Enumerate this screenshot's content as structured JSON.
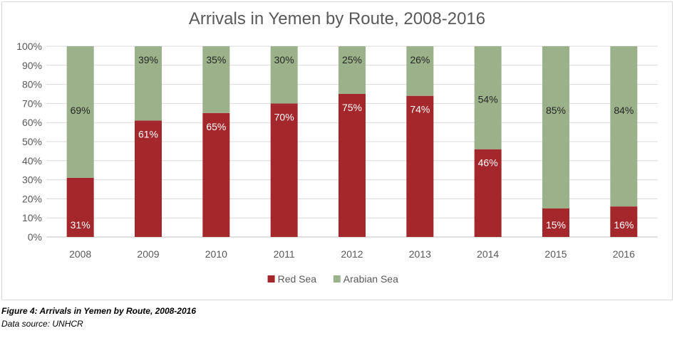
{
  "chart_data": {
    "type": "bar",
    "stacked": true,
    "title": "Arrivals in Yemen by Route, 2008-2016",
    "categories": [
      "2008",
      "2009",
      "2010",
      "2011",
      "2012",
      "2013",
      "2014",
      "2015",
      "2016"
    ],
    "series": [
      {
        "name": "Red Sea",
        "values": [
          31,
          61,
          65,
          70,
          75,
          74,
          46,
          15,
          16
        ],
        "color": "#a4282b"
      },
      {
        "name": "Arabian Sea",
        "values": [
          69,
          39,
          35,
          30,
          25,
          26,
          54,
          85,
          84
        ],
        "color": "#9bb18a"
      }
    ],
    "ylim": [
      0,
      100
    ],
    "yticks": [
      "0%",
      "10%",
      "20%",
      "30%",
      "40%",
      "50%",
      "60%",
      "70%",
      "80%",
      "90%",
      "100%"
    ],
    "grid": true,
    "legend": "bottom",
    "value_suffix": "%"
  },
  "caption": {
    "figure": "Figure 4: Arrivals in Yemen by Route, 2008-2016",
    "source": "Data source: UNHCR"
  }
}
